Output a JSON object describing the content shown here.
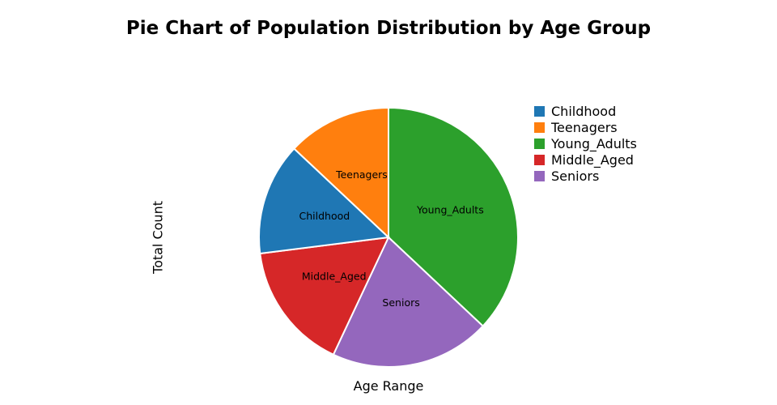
{
  "chart_data": {
    "type": "pie",
    "title": "Pie Chart of Population Distribution by Age Group",
    "xlabel": "Age Range",
    "ylabel": "Total Count",
    "categories": [
      "Childhood",
      "Teenagers",
      "Young_Adults",
      "Middle_Aged",
      "Seniors"
    ],
    "values": [
      14,
      13,
      37,
      16,
      20
    ],
    "unit": "%",
    "colors": [
      "#1f77b4",
      "#ff7f0e",
      "#2ca02c",
      "#d62728",
      "#9467bd"
    ],
    "slice_order": [
      "Young_Adults",
      "Seniors",
      "Middle_Aged",
      "Childhood",
      "Teenagers"
    ],
    "direction": "clockwise",
    "start_angle_deg": 0,
    "legend_position": "top-right",
    "show_slice_labels": true
  }
}
